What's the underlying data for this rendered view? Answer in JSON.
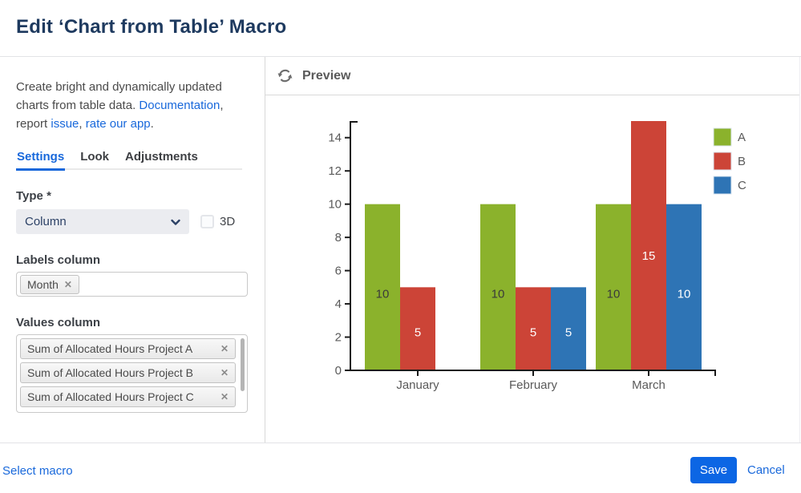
{
  "header": {
    "title": "Edit ‘Chart from Table’ Macro"
  },
  "sidebar": {
    "description": {
      "part1": "Create bright and dynamically updated charts from table data. ",
      "link_documentation": "Documentation",
      "part2": ", report ",
      "link_issue": "issue",
      "part3": ", ",
      "link_rate": "rate our app",
      "part4": "."
    },
    "tabs": [
      {
        "label": "Settings",
        "active": true
      },
      {
        "label": "Look",
        "active": false
      },
      {
        "label": "Adjustments",
        "active": false
      }
    ],
    "type_label": "Type *",
    "type_value": "Column",
    "checkbox_3d_label": "3D",
    "checkbox_3d_checked": false,
    "labels_column_label": "Labels column",
    "labels_tags": [
      "Month"
    ],
    "values_column_label": "Values column",
    "values_tags": [
      "Sum of Allocated Hours Project A",
      "Sum of Allocated Hours Project B",
      "Sum of Allocated Hours Project C"
    ],
    "remove_glyph": "✕"
  },
  "preview": {
    "title": "Preview"
  },
  "footer": {
    "select_macro_label": "Select macro",
    "save_label": "Save",
    "cancel_label": "Cancel"
  },
  "colors": {
    "accent_blue": "#1868db",
    "save_button_blue": "#0c66e4",
    "title_navy": "#1e3a5f",
    "axis_black": "#1a1a1a",
    "tick_text_gray": "#595959",
    "series_a_green": "#8bb22c",
    "series_b_red": "#cc4437",
    "series_c_blue": "#2e74b5"
  },
  "chart_data": {
    "type": "bar",
    "title": "",
    "categories": [
      "January",
      "February",
      "March"
    ],
    "series": [
      {
        "name": "A",
        "color": "#8bb22c",
        "values": [
          10,
          10,
          10
        ]
      },
      {
        "name": "B",
        "color": "#cc4437",
        "values": [
          5,
          5,
          15
        ]
      },
      {
        "name": "C",
        "color": "#2e74b5",
        "values": [
          null,
          5,
          10
        ]
      }
    ],
    "ylim": [
      0,
      15
    ],
    "yticks": [
      0,
      2,
      4,
      6,
      8,
      10,
      12,
      14
    ],
    "ytick_step": 2,
    "grid": false,
    "data_labels": true,
    "legend_position": "top-right"
  }
}
